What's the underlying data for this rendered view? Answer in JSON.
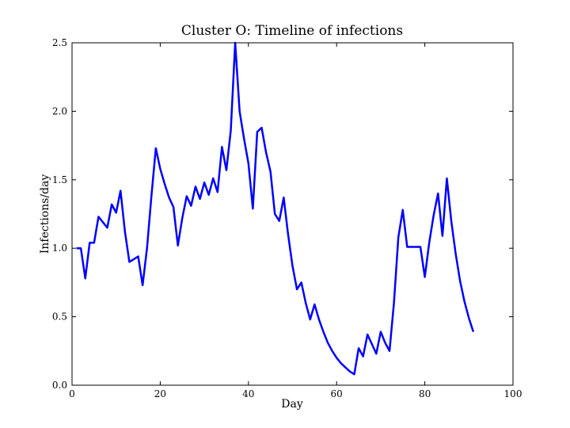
{
  "chart_data": {
    "type": "line",
    "title": "Cluster O: Timeline of infections",
    "xlabel": "Day",
    "ylabel": "Infections/day",
    "xlim": [
      0,
      100
    ],
    "ylim": [
      0,
      2.5
    ],
    "xticks": [
      0,
      20,
      40,
      60,
      80,
      100
    ],
    "yticks": [
      0.0,
      0.5,
      1.0,
      1.5,
      2.0,
      2.5
    ],
    "xtick_labels": [
      "0",
      "20",
      "40",
      "60",
      "80",
      "100"
    ],
    "ytick_labels": [
      "0.0",
      "0.5",
      "1.0",
      "1.5",
      "2.0",
      "2.5"
    ],
    "grid": false,
    "series": [
      {
        "color": "#0000ff",
        "x": [
          1,
          2,
          3,
          4,
          5,
          6,
          7,
          8,
          9,
          10,
          11,
          12,
          13,
          14,
          15,
          16,
          17,
          18,
          19,
          20,
          21,
          22,
          23,
          24,
          25,
          26,
          27,
          28,
          29,
          30,
          31,
          32,
          33,
          34,
          35,
          36,
          37,
          38,
          39,
          40,
          41,
          42,
          43,
          44,
          45,
          46,
          47,
          48,
          49,
          50,
          51,
          52,
          53,
          54,
          55,
          56,
          57,
          58,
          59,
          60,
          61,
          62,
          63,
          64,
          65,
          66,
          67,
          68,
          69,
          70,
          71,
          72,
          73,
          74,
          75,
          76,
          77,
          78,
          79,
          80,
          81,
          82,
          83,
          84,
          85,
          86,
          87,
          88,
          89,
          90,
          91
        ],
        "y": [
          1.0,
          1.0,
          0.78,
          1.04,
          1.04,
          1.23,
          1.19,
          1.15,
          1.32,
          1.26,
          1.42,
          1.12,
          0.9,
          0.92,
          0.94,
          0.73,
          1.0,
          1.38,
          1.73,
          1.58,
          1.47,
          1.37,
          1.3,
          1.02,
          1.22,
          1.38,
          1.31,
          1.45,
          1.36,
          1.48,
          1.39,
          1.51,
          1.41,
          1.74,
          1.57,
          1.86,
          2.5,
          2.0,
          1.8,
          1.62,
          1.29,
          1.85,
          1.88,
          1.7,
          1.56,
          1.25,
          1.2,
          1.37,
          1.1,
          0.87,
          0.7,
          0.75,
          0.6,
          0.48,
          0.59,
          0.48,
          0.39,
          0.31,
          0.25,
          0.2,
          0.16,
          0.13,
          0.1,
          0.08,
          0.27,
          0.21,
          0.37,
          0.3,
          0.23,
          0.39,
          0.31,
          0.25,
          0.6,
          1.08,
          1.28,
          1.01,
          1.01,
          1.01,
          1.01,
          0.79,
          1.04,
          1.24,
          1.4,
          1.09,
          1.51,
          1.2,
          0.96,
          0.76,
          0.61,
          0.49,
          0.39
        ]
      }
    ]
  }
}
